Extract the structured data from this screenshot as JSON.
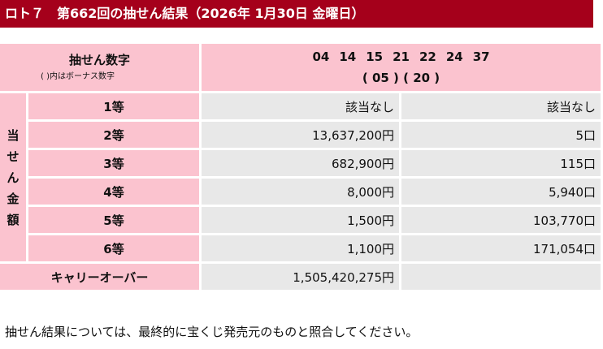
{
  "title": "ロト７　第662回の抽せん結果（2026年 1月30日 金曜日）",
  "draw_label": "抽せん数字",
  "bonus_note": "( )内はボーナス数字",
  "main_numbers": [
    "04",
    "14",
    "15",
    "21",
    "22",
    "24",
    "37"
  ],
  "bonus_numbers": "( 05 ) ( 20 )",
  "prize_side_label": [
    "当",
    "せ",
    "ん",
    "金",
    "額"
  ],
  "prizes": [
    {
      "rank": "1等",
      "amount": "該当なし",
      "winners": "該当なし"
    },
    {
      "rank": "2等",
      "amount": "13,637,200円",
      "winners": "5口"
    },
    {
      "rank": "3等",
      "amount": "682,900円",
      "winners": "115口"
    },
    {
      "rank": "4等",
      "amount": "8,000円",
      "winners": "5,940口"
    },
    {
      "rank": "5等",
      "amount": "1,500円",
      "winners": "103,770口"
    },
    {
      "rank": "6等",
      "amount": "1,100円",
      "winners": "171,054口"
    }
  ],
  "carryover": {
    "label": "キャリーオーバー",
    "amount": "1,505,420,275円"
  },
  "footer_note": "抽せん結果については、最終的に宝くじ発売元のものと照合してください。"
}
